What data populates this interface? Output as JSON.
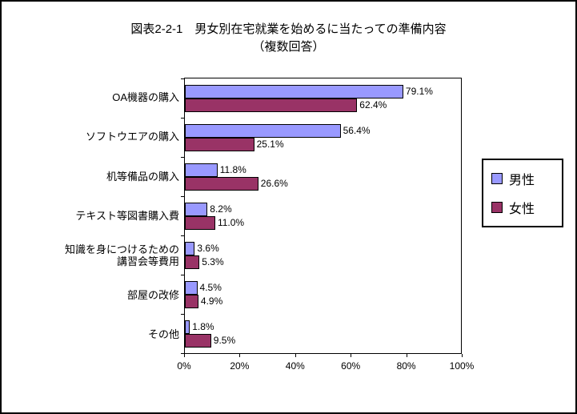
{
  "title": {
    "line1": "図表2-2-1　男女別在宅就業を始めるに当たっての準備内容",
    "line2": "（複数回答）"
  },
  "chart_data": {
    "type": "bar",
    "orientation": "horizontal",
    "title": "図表2-2-1　男女別在宅就業を始めるに当たっての準備内容（複数回答）",
    "categories": [
      "OA機器の購入",
      "ソフトウエアの購入",
      "机等備品の購入",
      "テキスト等図書購入費",
      "知識を身につけるための\n講習会等費用",
      "部屋の改修",
      "その他"
    ],
    "series": [
      {
        "name": "男性",
        "key": "male",
        "color": "#9999FF",
        "values": [
          79.1,
          56.4,
          11.8,
          8.2,
          3.6,
          4.5,
          1.8
        ]
      },
      {
        "name": "女性",
        "key": "female",
        "color": "#993366",
        "values": [
          62.4,
          25.1,
          26.6,
          11.0,
          5.3,
          4.9,
          9.5
        ]
      }
    ],
    "xlim": [
      0,
      100
    ],
    "x_ticks": [
      "0%",
      "20%",
      "40%",
      "60%",
      "80%",
      "100%"
    ],
    "value_suffix": "%",
    "legend_position": "right",
    "grid": false,
    "plot_bg": "#FFFFFF"
  }
}
